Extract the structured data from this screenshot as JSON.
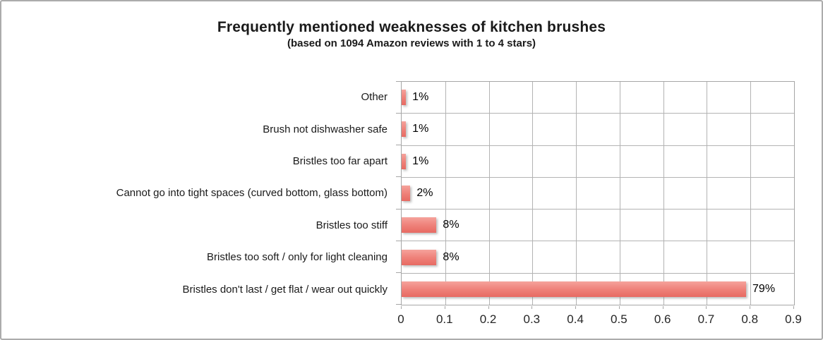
{
  "figure": {
    "title": "Frequently mentioned weaknesses of kitchen brushes",
    "subtitle": "(based on 1094 Amazon reviews with 1 to 4 stars)"
  },
  "chart_data": {
    "type": "bar",
    "orientation": "horizontal",
    "title": "Frequently mentioned weaknesses of kitchen brushes",
    "subtitle": "(based on 1094 Amazon reviews with 1 to 4 stars)",
    "categories": [
      "Other",
      "Brush not dishwasher safe",
      "Bristles too far apart",
      "Cannot go into tight spaces (curved bottom, glass bottom)",
      "Bristles too stiff",
      "Bristles too soft / only for light cleaning",
      "Bristles don't last / get flat / wear out quickly"
    ],
    "values": [
      0.01,
      0.01,
      0.01,
      0.02,
      0.08,
      0.08,
      0.79
    ],
    "value_labels": [
      "1%",
      "1%",
      "1%",
      "2%",
      "8%",
      "8%",
      "79%"
    ],
    "x_ticks": [
      0,
      0.1,
      0.2,
      0.3,
      0.4,
      0.5,
      0.6,
      0.7,
      0.8,
      0.9
    ],
    "x_tick_labels": [
      "0",
      "0.1",
      "0.2",
      "0.3",
      "0.4",
      "0.5",
      "0.6",
      "0.7",
      "0.8",
      "0.9"
    ],
    "xlim": [
      0,
      0.9
    ],
    "grid": true,
    "legend": false,
    "colors": {
      "bar_gradient_top": "#F5A29B",
      "bar_gradient_mid": "#EF827A",
      "bar_gradient_bottom": "#E76A63",
      "gridline": "#B3B3B3",
      "plot_border": "#A6A6A6",
      "text": "#1A1A1A"
    }
  }
}
